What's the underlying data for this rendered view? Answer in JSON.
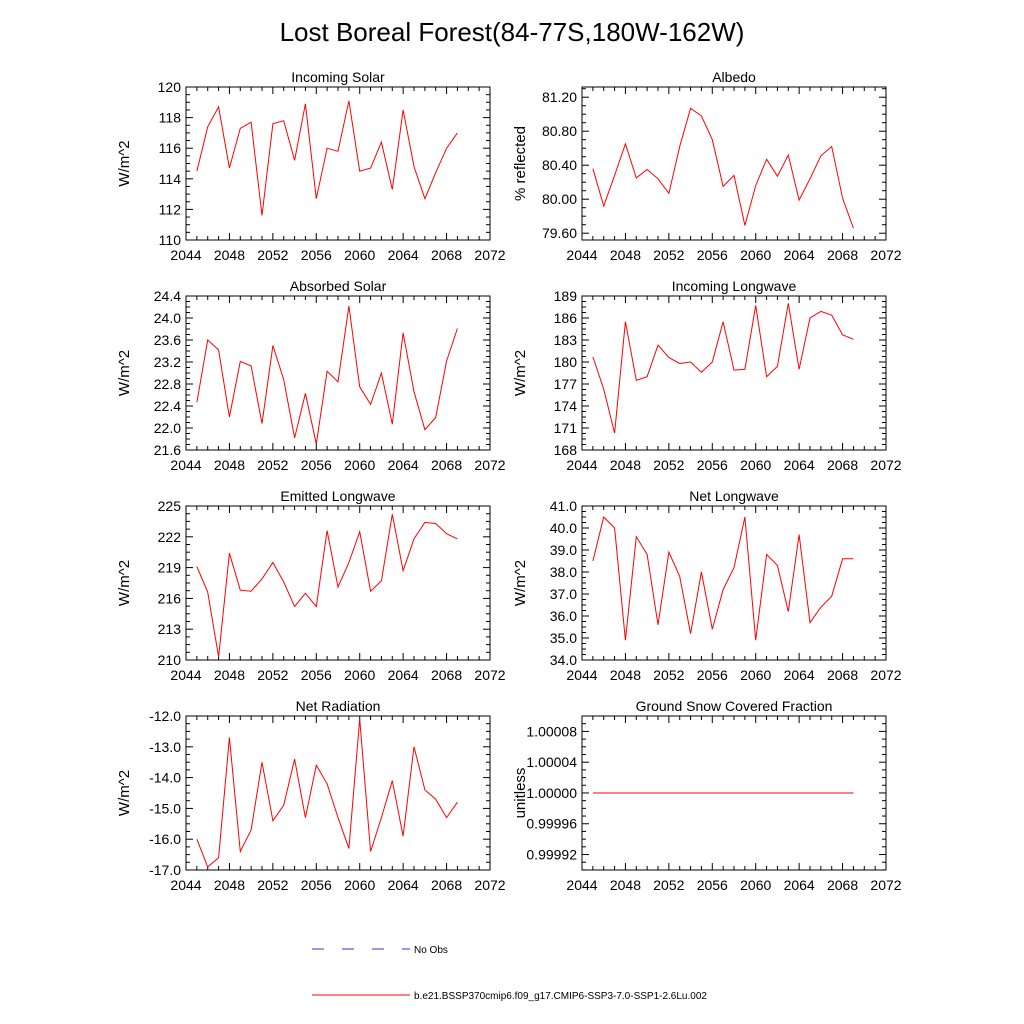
{
  "figure": {
    "title": "Lost Boreal Forest(84-77S,180W-162W)"
  },
  "legend": [
    {
      "label": "No Obs",
      "color": "#3333cc",
      "style": "dashed"
    },
    {
      "label": "b.e21.BSSP370cmip6.f09_g17.CMIP6-SSP3-7.0-SSP1-2.6Lu.002",
      "color": "#ff0000",
      "style": "solid"
    }
  ],
  "chart_data": [
    {
      "type": "line",
      "title": "Incoming Solar",
      "ylabel": "W/m^2",
      "xlim": [
        2044,
        2072
      ],
      "ylim": [
        110,
        120
      ],
      "xticks": [
        2044,
        2048,
        2052,
        2056,
        2060,
        2064,
        2068,
        2072
      ],
      "yticks": [
        110,
        112,
        114,
        116,
        118,
        120
      ],
      "ytick_labels": [
        "110",
        "112",
        "114",
        "116",
        "118",
        "120"
      ],
      "series": [
        {
          "color": "#ff0000",
          "x": [
            2045,
            2046,
            2047,
            2048,
            2049,
            2050,
            2051,
            2052,
            2053,
            2054,
            2055,
            2056,
            2057,
            2058,
            2059,
            2060,
            2061,
            2062,
            2063,
            2064,
            2065,
            2066,
            2067,
            2068,
            2069
          ],
          "y": [
            114.5,
            117.4,
            118.7,
            114.7,
            117.3,
            117.7,
            111.6,
            117.6,
            117.8,
            115.2,
            118.9,
            112.7,
            116.0,
            115.8,
            119.1,
            114.5,
            114.7,
            116.4,
            113.3,
            118.5,
            114.8,
            112.7,
            114.4,
            116.0,
            117.0
          ]
        }
      ]
    },
    {
      "type": "line",
      "title": "Albedo",
      "ylabel": "% reflected",
      "xlim": [
        2044,
        2072
      ],
      "ylim": [
        79.52,
        81.32
      ],
      "xticks": [
        2044,
        2048,
        2052,
        2056,
        2060,
        2064,
        2068,
        2072
      ],
      "yticks": [
        79.6,
        80.0,
        80.4,
        80.8,
        81.2
      ],
      "ytick_labels": [
        "79.60",
        "80.00",
        "80.40",
        "80.80",
        "81.20"
      ],
      "series": [
        {
          "color": "#ff0000",
          "x": [
            2045,
            2046,
            2047,
            2048,
            2049,
            2050,
            2051,
            2052,
            2053,
            2054,
            2055,
            2056,
            2057,
            2058,
            2059,
            2060,
            2061,
            2062,
            2063,
            2064,
            2065,
            2066,
            2067,
            2068,
            2069
          ],
          "y": [
            80.36,
            79.92,
            80.28,
            80.65,
            80.25,
            80.35,
            80.24,
            80.07,
            80.62,
            81.07,
            80.98,
            80.7,
            80.15,
            80.28,
            79.69,
            80.16,
            80.47,
            80.27,
            80.52,
            79.99,
            80.24,
            80.51,
            80.62,
            80.01,
            79.66
          ]
        }
      ]
    },
    {
      "type": "line",
      "title": "Absorbed Solar",
      "ylabel": "W/m^2",
      "xlim": [
        2044,
        2072
      ],
      "ylim": [
        21.6,
        24.4
      ],
      "xticks": [
        2044,
        2048,
        2052,
        2056,
        2060,
        2064,
        2068,
        2072
      ],
      "yticks": [
        21.6,
        22.0,
        22.4,
        22.8,
        23.2,
        23.6,
        24.0,
        24.4
      ],
      "ytick_labels": [
        "21.6",
        "22.0",
        "22.4",
        "22.8",
        "23.2",
        "23.6",
        "24.0",
        "24.4"
      ],
      "series": [
        {
          "color": "#ff0000",
          "x": [
            2045,
            2046,
            2047,
            2048,
            2049,
            2050,
            2051,
            2052,
            2053,
            2054,
            2055,
            2056,
            2057,
            2058,
            2059,
            2060,
            2061,
            2062,
            2063,
            2064,
            2065,
            2066,
            2067,
            2068,
            2069
          ],
          "y": [
            22.47,
            23.6,
            23.42,
            22.2,
            23.21,
            23.13,
            22.08,
            23.5,
            22.88,
            21.82,
            22.63,
            21.71,
            23.03,
            22.84,
            24.22,
            22.75,
            22.43,
            23.0,
            22.07,
            23.73,
            22.66,
            21.97,
            22.19,
            23.22,
            23.81
          ]
        }
      ]
    },
    {
      "type": "line",
      "title": "Incoming Longwave",
      "ylabel": "W/m^2",
      "xlim": [
        2044,
        2072
      ],
      "ylim": [
        168,
        189
      ],
      "xticks": [
        2044,
        2048,
        2052,
        2056,
        2060,
        2064,
        2068,
        2072
      ],
      "yticks": [
        168,
        171,
        174,
        177,
        180,
        183,
        186,
        189
      ],
      "ytick_labels": [
        "168",
        "171",
        "174",
        "177",
        "180",
        "183",
        "186",
        "189"
      ],
      "series": [
        {
          "color": "#ff0000",
          "x": [
            2045,
            2046,
            2047,
            2048,
            2049,
            2050,
            2051,
            2052,
            2053,
            2054,
            2055,
            2056,
            2057,
            2058,
            2059,
            2060,
            2061,
            2062,
            2063,
            2064,
            2065,
            2066,
            2067,
            2068,
            2069
          ],
          "y": [
            180.7,
            176.3,
            170.3,
            185.5,
            177.5,
            178.0,
            182.3,
            180.6,
            179.8,
            180.0,
            178.6,
            180.0,
            185.5,
            178.9,
            179.0,
            187.7,
            178.0,
            179.4,
            188.0,
            179.0,
            186.0,
            186.9,
            186.4,
            183.7,
            183.1
          ]
        }
      ]
    },
    {
      "type": "line",
      "title": "Emitted Longwave",
      "ylabel": "W/m^2",
      "xlim": [
        2044,
        2072
      ],
      "ylim": [
        210,
        225
      ],
      "xticks": [
        2044,
        2048,
        2052,
        2056,
        2060,
        2064,
        2068,
        2072
      ],
      "yticks": [
        210,
        213,
        216,
        219,
        222,
        225
      ],
      "ytick_labels": [
        "210",
        "213",
        "216",
        "219",
        "222",
        "225"
      ],
      "series": [
        {
          "color": "#ff0000",
          "x": [
            2045,
            2046,
            2047,
            2048,
            2049,
            2050,
            2051,
            2052,
            2053,
            2054,
            2055,
            2056,
            2057,
            2058,
            2059,
            2060,
            2061,
            2062,
            2063,
            2064,
            2065,
            2066,
            2067,
            2068,
            2069
          ],
          "y": [
            219.1,
            216.6,
            210.3,
            220.4,
            216.8,
            216.7,
            217.9,
            219.5,
            217.6,
            215.2,
            216.5,
            215.2,
            222.6,
            217.1,
            219.5,
            222.5,
            216.7,
            217.7,
            224.2,
            218.7,
            221.8,
            223.4,
            223.3,
            222.3,
            221.8
          ]
        }
      ]
    },
    {
      "type": "line",
      "title": "Net Longwave",
      "ylabel": "W/m^2",
      "xlim": [
        2044,
        2072
      ],
      "ylim": [
        34.0,
        41.0
      ],
      "xticks": [
        2044,
        2048,
        2052,
        2056,
        2060,
        2064,
        2068,
        2072
      ],
      "yticks": [
        34.0,
        35.0,
        36.0,
        37.0,
        38.0,
        39.0,
        40.0,
        41.0
      ],
      "ytick_labels": [
        "34.0",
        "35.0",
        "36.0",
        "37.0",
        "38.0",
        "39.0",
        "40.0",
        "41.0"
      ],
      "series": [
        {
          "color": "#ff0000",
          "x": [
            2045,
            2046,
            2047,
            2048,
            2049,
            2050,
            2051,
            2052,
            2053,
            2054,
            2055,
            2056,
            2057,
            2058,
            2059,
            2060,
            2061,
            2062,
            2063,
            2064,
            2065,
            2066,
            2067,
            2068,
            2069
          ],
          "y": [
            38.5,
            40.5,
            40.0,
            34.9,
            39.6,
            38.8,
            35.6,
            38.9,
            37.8,
            35.2,
            38.0,
            35.4,
            37.2,
            38.2,
            40.5,
            34.9,
            38.8,
            38.3,
            36.2,
            39.7,
            35.7,
            36.4,
            36.9,
            38.6,
            38.6
          ]
        }
      ]
    },
    {
      "type": "line",
      "title": "Net Radiation",
      "ylabel": "W/m^2",
      "xlim": [
        2044,
        2072
      ],
      "ylim": [
        -17.0,
        -12.0
      ],
      "xticks": [
        2044,
        2048,
        2052,
        2056,
        2060,
        2064,
        2068,
        2072
      ],
      "yticks": [
        -17.0,
        -16.0,
        -15.0,
        -14.0,
        -13.0,
        -12.0
      ],
      "ytick_labels": [
        "-17.0",
        "-16.0",
        "-15.0",
        "-14.0",
        "-13.0",
        "-12.0"
      ],
      "series": [
        {
          "color": "#ff0000",
          "x": [
            2045,
            2046,
            2047,
            2048,
            2049,
            2050,
            2051,
            2052,
            2053,
            2054,
            2055,
            2056,
            2057,
            2058,
            2059,
            2060,
            2061,
            2062,
            2063,
            2064,
            2065,
            2066,
            2067,
            2068,
            2069
          ],
          "y": [
            -16.0,
            -16.9,
            -16.6,
            -12.7,
            -16.4,
            -15.7,
            -13.5,
            -15.4,
            -14.9,
            -13.4,
            -15.3,
            -13.6,
            -14.2,
            -15.3,
            -16.3,
            -12.1,
            -16.4,
            -15.3,
            -14.1,
            -15.9,
            -13.0,
            -14.4,
            -14.7,
            -15.3,
            -14.8
          ]
        }
      ]
    },
    {
      "type": "line",
      "title": "Ground Snow Covered Fraction",
      "ylabel": "unitless",
      "xlim": [
        2044,
        2072
      ],
      "ylim": [
        0.9998999,
        1.0001
      ],
      "xticks": [
        2044,
        2048,
        2052,
        2056,
        2060,
        2064,
        2068,
        2072
      ],
      "yticks": [
        0.99992,
        0.99996,
        1.0,
        1.00004,
        1.00008
      ],
      "ytick_labels": [
        "0.99992",
        "0.99996",
        "1.00000",
        "1.00004",
        "1.00008"
      ],
      "series": [
        {
          "color": "#ff0000",
          "x": [
            2045,
            2069
          ],
          "y": [
            1.0,
            1.0
          ]
        }
      ]
    }
  ]
}
